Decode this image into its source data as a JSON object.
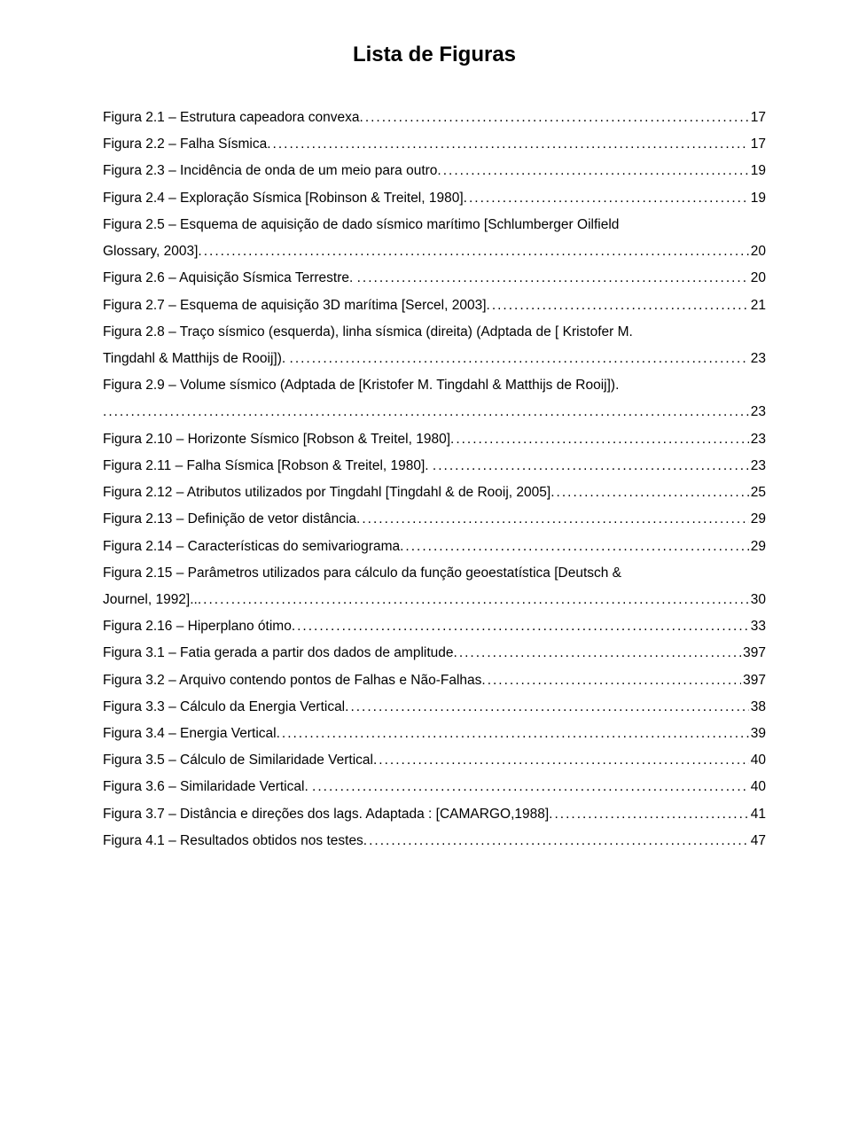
{
  "title": "Lista de Figuras",
  "entries": [
    {
      "label": "Figura 2.1 – Estrutura capeadora convexa.",
      "page": "17"
    },
    {
      "label": "Figura 2.2 – Falha Sísmica.",
      "page": "17"
    },
    {
      "label": "Figura 2.3 – Incidência de onda de um meio para outro.",
      "page": "19"
    },
    {
      "label": "Figura 2.4 – Exploração Sísmica [Robinson & Treitel, 1980].",
      "page": "19"
    },
    {
      "label_lines": [
        "Figura 2.5 – Esquema de aquisição de dado sísmico marítimo [Schlumberger Oilfield",
        "Glossary, 2003]."
      ],
      "page": "20"
    },
    {
      "label": "Figura 2.6 – Aquisição Sísmica Terrestre. .",
      "page": "20"
    },
    {
      "label": "Figura 2.7 – Esquema de aquisição 3D marítima [Sercel, 2003].",
      "page": "21"
    },
    {
      "label_lines": [
        "Figura 2.8 – Traço sísmico (esquerda), linha sísmica (direita) (Adptada de [ Kristofer M.",
        "Tingdahl & Matthijs de Rooij]). ."
      ],
      "page": "23"
    },
    {
      "label_lines": [
        "Figura 2.9 – Volume sísmico (Adptada de [Kristofer M. Tingdahl & Matthijs de Rooij]).",
        "."
      ],
      "page": "23"
    },
    {
      "label": "Figura 2.10 – Horizonte Sísmico [Robson & Treitel, 1980].",
      "page": "23"
    },
    {
      "label": "Figura 2.11 – Falha Sísmica [Robson & Treitel, 1980]. .",
      "page": "23"
    },
    {
      "label": "Figura 2.12 – Atributos utilizados por Tingdahl [Tingdahl & de Rooij, 2005].",
      "page": "25"
    },
    {
      "label": "Figura 2.13 – Definição de vetor distância.",
      "page": "29"
    },
    {
      "label": "Figura 2.14 – Características do semivariograma.",
      "page": "29"
    },
    {
      "label_lines": [
        "Figura 2.15 – Parâmetros utilizados para cálculo da função geoestatística [Deutsch &",
        "Journel, 1992]..."
      ],
      "page": "30"
    },
    {
      "label": "Figura 2.16 – Hiperplano ótimo.",
      "page": "33"
    },
    {
      "label": "Figura 3.1 – Fatia gerada a partir dos dados de amplitude.",
      "page": "397"
    },
    {
      "label": "Figura 3.2 – Arquivo contendo pontos de Falhas e Não-Falhas.",
      "page": "397"
    },
    {
      "label": "Figura 3.3 – Cálculo da Energia Vertical.",
      "page": "38"
    },
    {
      "label": "Figura 3.4 – Energia Vertical.",
      "page": "39"
    },
    {
      "label": "Figura 3.5 – Cálculo de Similaridade Vertical.",
      "page": "40"
    },
    {
      "label": "Figura 3.6 – Similaridade Vertical. .",
      "page": "40"
    },
    {
      "label": "Figura 3.7 – Distância e direções dos lags. Adaptada : [CAMARGO,1988].",
      "page": "41"
    },
    {
      "label": "Figura 4.1 – Resultados obtidos nos testes.",
      "page": "47"
    }
  ]
}
